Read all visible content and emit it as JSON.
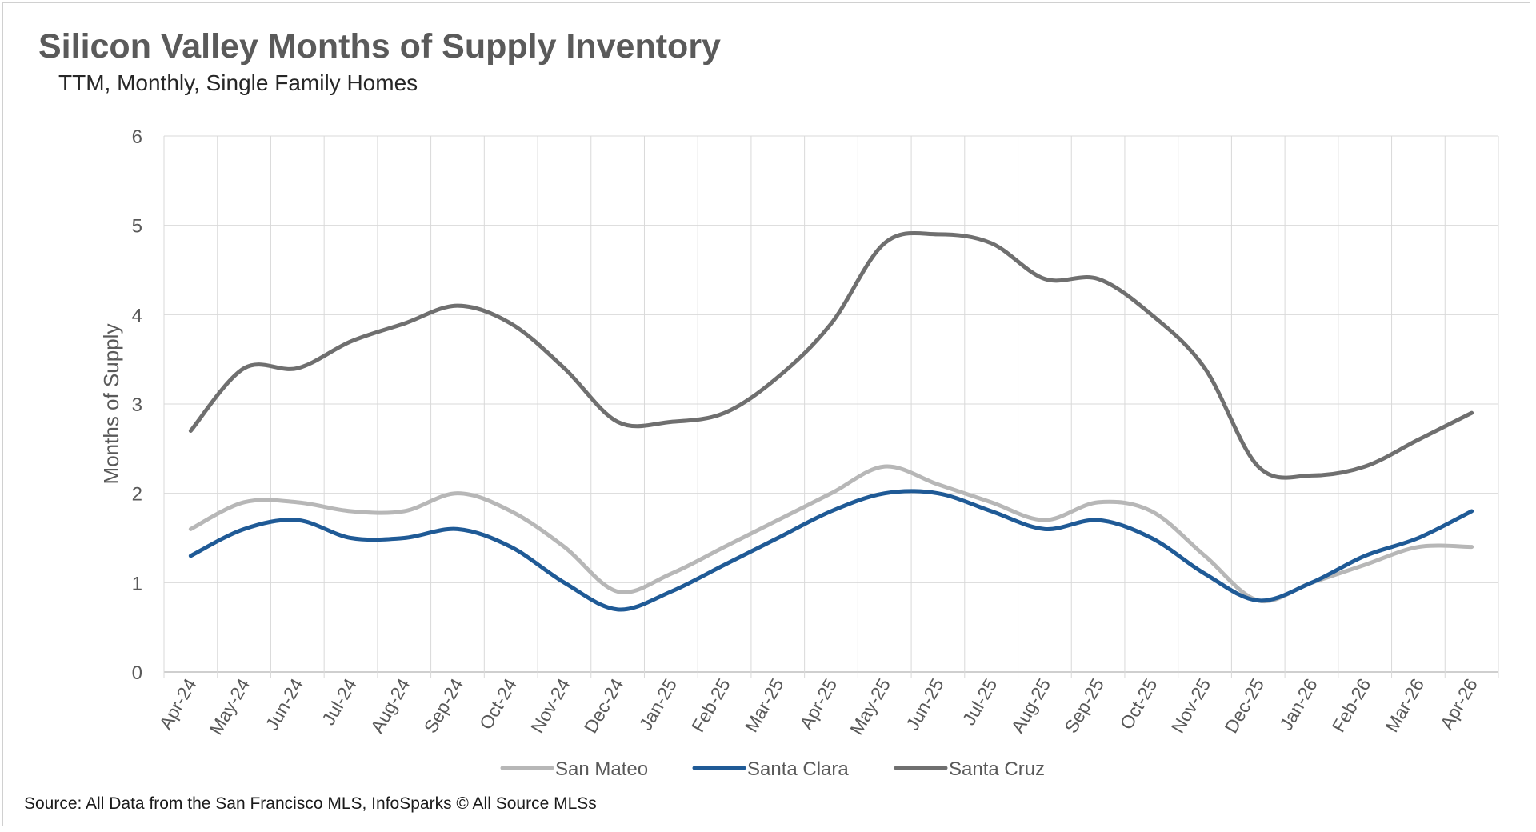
{
  "title": "Silicon Valley Months of Supply Inventory",
  "subtitle": "TTM, Monthly, Single Family Homes",
  "source": "Source: All Data from the San Francisco MLS, InfoSparks © All Source MLSs",
  "chart_data": {
    "type": "line",
    "title": "Silicon Valley Months of Supply Inventory",
    "subtitle": "TTM, Monthly, Single Family Homes",
    "xlabel": "",
    "ylabel": "Months of Supply",
    "ylim": [
      0,
      6
    ],
    "yticks": [
      "0",
      "1",
      "2",
      "3",
      "4",
      "5",
      "6"
    ],
    "grid": true,
    "smooth": true,
    "legend_position": "bottom",
    "categories": [
      "Apr-24",
      "May-24",
      "Jun-24",
      "Jul-24",
      "Aug-24",
      "Sep-24",
      "Oct-24",
      "Nov-24",
      "Dec-24",
      "Jan-25",
      "Feb-25",
      "Mar-25",
      "Apr-25",
      "May-25",
      "Jun-25",
      "Jul-25",
      "Aug-25",
      "Sep-25",
      "Oct-25",
      "Nov-25",
      "Dec-25",
      "Jan-26",
      "Feb-26",
      "Mar-26",
      "Apr-26"
    ],
    "series": [
      {
        "name": "San Mateo",
        "color": "#b7b7b7",
        "values": [
          1.6,
          1.9,
          1.9,
          1.8,
          1.8,
          2.0,
          1.8,
          1.4,
          0.9,
          1.1,
          1.4,
          1.7,
          2.0,
          2.3,
          2.1,
          1.9,
          1.7,
          1.9,
          1.8,
          1.3,
          0.8,
          1.0,
          1.2,
          1.4,
          1.4
        ]
      },
      {
        "name": "Santa Clara",
        "color": "#1f5a96",
        "values": [
          1.3,
          1.6,
          1.7,
          1.5,
          1.5,
          1.6,
          1.4,
          1.0,
          0.7,
          0.9,
          1.2,
          1.5,
          1.8,
          2.0,
          2.0,
          1.8,
          1.6,
          1.7,
          1.5,
          1.1,
          0.8,
          1.0,
          1.3,
          1.5,
          1.8
        ]
      },
      {
        "name": "Santa Cruz",
        "color": "#6f6f6f",
        "values": [
          2.7,
          3.4,
          3.4,
          3.7,
          3.9,
          4.1,
          3.9,
          3.4,
          2.8,
          2.8,
          2.9,
          3.3,
          3.9,
          4.8,
          4.9,
          4.8,
          4.4,
          4.4,
          4.0,
          3.4,
          2.3,
          2.2,
          2.3,
          2.6,
          2.9
        ]
      }
    ]
  }
}
